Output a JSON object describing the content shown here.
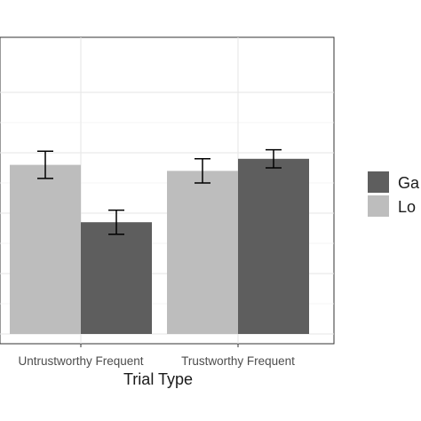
{
  "chart_data": {
    "type": "bar",
    "title": "",
    "xlabel": "Trial Type",
    "ylabel": "",
    "categories": [
      "Untrustworthy Frequent",
      "Trustworthy Frequent"
    ],
    "ylim": [
      0,
      0.85
    ],
    "grid": true,
    "legend_position": "right",
    "series": [
      {
        "name": "Lo",
        "color": "#bdbdbd",
        "values": [
          0.56,
          0.54
        ],
        "errors": [
          0.045,
          0.04
        ]
      },
      {
        "name": "Ga",
        "color": "#5e5e5e",
        "values": [
          0.37,
          0.58
        ],
        "errors": [
          0.04,
          0.03
        ]
      }
    ],
    "legend_order": [
      "Ga",
      "Lo"
    ]
  }
}
